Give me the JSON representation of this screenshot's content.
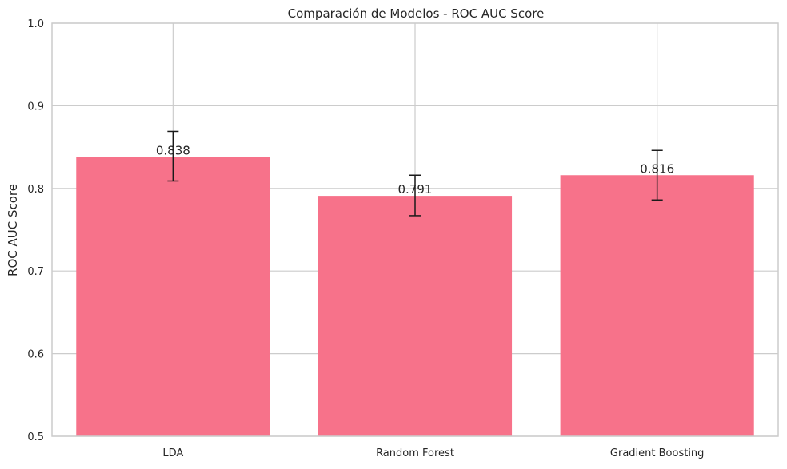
{
  "chart_data": {
    "type": "bar",
    "title": "Comparación de Modelos - ROC AUC Score",
    "xlabel": "",
    "ylabel": "ROC AUC Score",
    "categories": [
      "LDA",
      "Random Forest",
      "Gradient Boosting"
    ],
    "values": [
      0.838,
      0.791,
      0.816
    ],
    "value_labels": [
      "0.838",
      "0.791",
      "0.816"
    ],
    "error_low": [
      0.809,
      0.767,
      0.786
    ],
    "error_high": [
      0.869,
      0.816,
      0.846
    ],
    "ylim": [
      0.5,
      1.0
    ],
    "yticks": [
      0.5,
      0.6,
      0.7,
      0.8,
      0.9,
      1.0
    ],
    "ytick_labels": [
      "0.5",
      "0.6",
      "0.7",
      "0.8",
      "0.9",
      "1.0"
    ],
    "grid": true,
    "legend": "none",
    "colors": {
      "bar": "#f7728a",
      "grid": "#cccccc",
      "axes_edge": "#cccccc",
      "error_bar": "#1a1a1a",
      "text": "#262626"
    }
  }
}
